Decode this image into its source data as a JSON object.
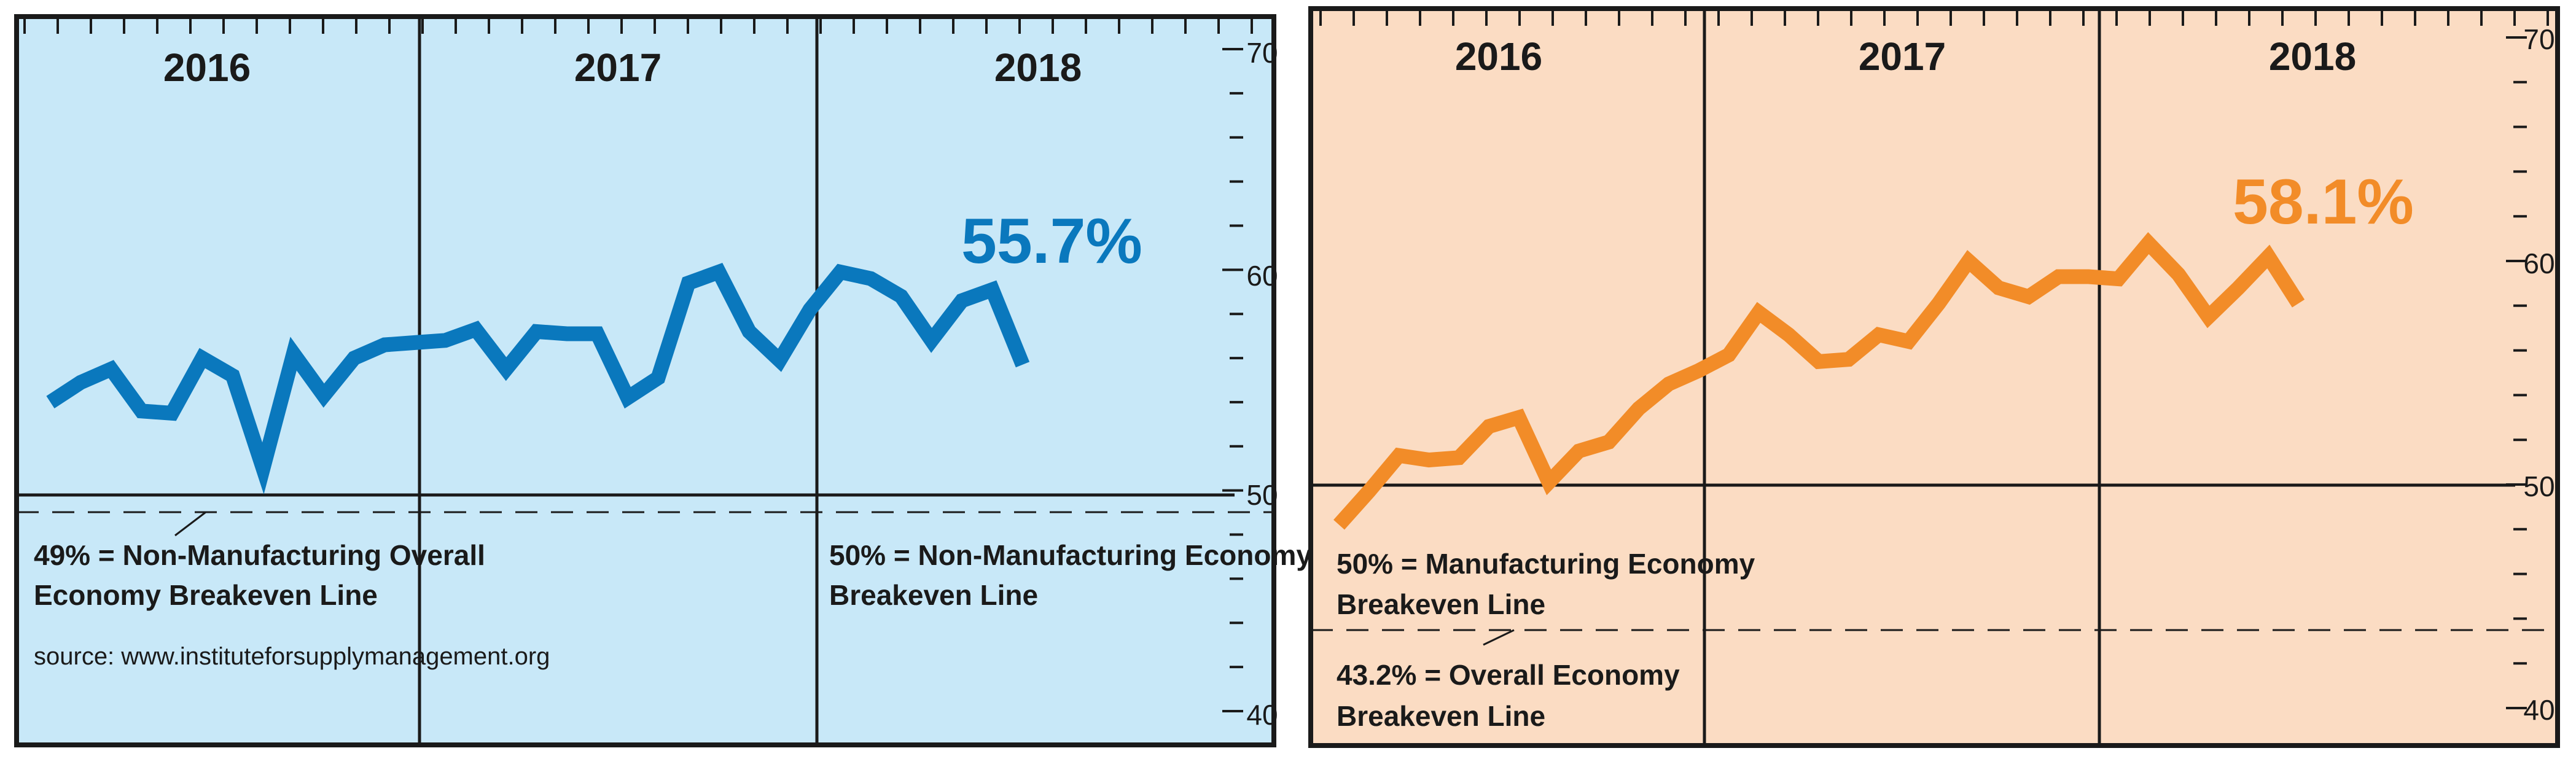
{
  "colors": {
    "left_bg": "#c8e8f8",
    "left_line": "#0a78bd",
    "right_bg": "#fbdcc3",
    "right_line": "#f28c28",
    "axis": "#1a1a1a"
  },
  "chart_data": [
    {
      "type": "line",
      "years": [
        "2016",
        "2017",
        "2018"
      ],
      "ylim": [
        40,
        70
      ],
      "yticks": [
        "70",
        "60",
        "50",
        "40"
      ],
      "grid": false,
      "series": [
        {
          "values": [
            54.0,
            54.9,
            55.5,
            53.6,
            53.5,
            56.0,
            55.2,
            51.0,
            56.2,
            54.3,
            56.0,
            56.6,
            56.7,
            56.8,
            57.3,
            55.5,
            57.2,
            57.1,
            57.1,
            54.2,
            55.1,
            59.4,
            59.9,
            57.2,
            55.9,
            58.2,
            59.9,
            59.6,
            58.8,
            56.8,
            58.6,
            59.1,
            55.7
          ]
        }
      ],
      "headline": "55.7%",
      "reference_line_solid": 50,
      "reference_line_dashed": 49,
      "annotations": [
        {
          "lines": [
            "49% = Non-Manufacturing Overall",
            "Economy Breakeven Line"
          ]
        },
        {
          "lines": [
            "50% = Non-Manufacturing Economy",
            "Breakeven Line"
          ]
        }
      ],
      "source": "source: www.instituteforsupplymanagement.org"
    },
    {
      "type": "line",
      "years": [
        "2016",
        "2017",
        "2018"
      ],
      "ylim": [
        40,
        70
      ],
      "yticks": [
        "70",
        "60",
        "50",
        "40"
      ],
      "grid": false,
      "series": [
        {
          "values": [
            48.2,
            49.7,
            51.3,
            51.1,
            51.2,
            52.6,
            53.0,
            50.1,
            51.5,
            51.9,
            53.4,
            54.5,
            55.1,
            55.8,
            57.7,
            56.7,
            55.5,
            55.6,
            56.7,
            56.4,
            58.1,
            60.0,
            58.8,
            58.4,
            59.3,
            59.3,
            59.2,
            60.8,
            59.4,
            57.5,
            58.8,
            60.2,
            58.1
          ]
        }
      ],
      "headline": "58.1%",
      "reference_line_solid": 50,
      "reference_line_dashed": 43.2,
      "annotations": [
        {
          "lines": [
            "50% = Manufacturing Economy",
            "Breakeven Line"
          ]
        },
        {
          "lines": [
            "43.2% = Overall Economy",
            "Breakeven Line"
          ]
        }
      ]
    }
  ]
}
